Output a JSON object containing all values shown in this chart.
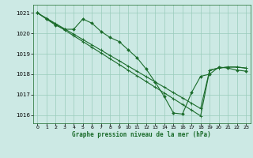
{
  "bg_color": "#cce9e4",
  "grid_color": "#99ccbb",
  "line_color": "#1a6b2a",
  "title": "Graphe pression niveau de la mer (hPa)",
  "ylabel_ticks": [
    1016,
    1017,
    1018,
    1019,
    1020,
    1021
  ],
  "xlim": [
    -0.5,
    23.5
  ],
  "ylim": [
    1015.6,
    1021.4
  ],
  "series1": {
    "x": [
      0,
      1,
      2,
      3,
      4,
      5,
      6,
      7,
      8,
      9,
      10,
      11,
      12,
      13,
      14,
      15,
      16,
      17,
      18,
      19,
      20,
      21,
      22,
      23
    ],
    "y": [
      1021.0,
      1020.7,
      1020.4,
      1020.2,
      1020.2,
      1020.7,
      1020.5,
      1020.1,
      1019.8,
      1019.6,
      1019.2,
      1018.8,
      1018.25,
      1017.6,
      1016.9,
      1016.1,
      1016.05,
      1017.1,
      1017.9,
      1018.0,
      1018.35,
      1018.3,
      1018.2,
      1018.15
    ]
  },
  "series2": {
    "x": [
      0,
      1,
      2,
      3,
      4,
      5,
      6,
      7,
      8,
      9,
      10,
      11,
      12,
      13,
      14,
      15,
      16,
      17,
      18,
      19,
      20,
      21,
      22,
      23
    ],
    "y": [
      1021.0,
      1020.72,
      1020.44,
      1020.16,
      1019.88,
      1019.6,
      1019.32,
      1019.04,
      1018.76,
      1018.48,
      1018.2,
      1017.92,
      1017.64,
      1017.36,
      1017.08,
      1016.8,
      1016.52,
      1016.24,
      1015.96,
      1018.2,
      1018.3,
      1018.35,
      1018.35,
      1018.3
    ]
  },
  "series3": {
    "x": [
      0,
      1,
      2,
      3,
      4,
      5,
      6,
      7,
      8,
      9,
      10,
      11,
      12,
      13,
      14,
      15,
      16,
      17,
      18,
      19,
      20,
      21,
      22,
      23
    ],
    "y": [
      1021.0,
      1020.74,
      1020.48,
      1020.22,
      1019.96,
      1019.7,
      1019.44,
      1019.18,
      1018.92,
      1018.66,
      1018.4,
      1018.14,
      1017.88,
      1017.62,
      1017.36,
      1017.1,
      1016.84,
      1016.58,
      1016.32,
      1018.2,
      1018.3,
      1018.35,
      1018.35,
      1018.3
    ]
  }
}
